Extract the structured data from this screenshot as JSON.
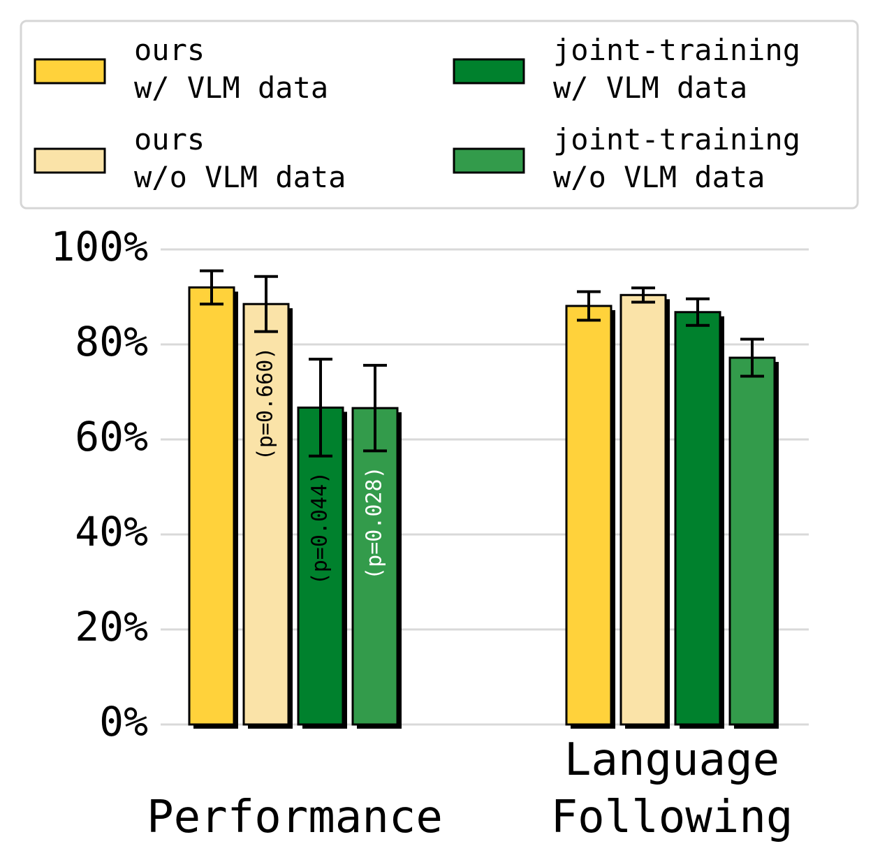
{
  "chart_data": {
    "type": "bar",
    "categories": [
      "Performance",
      "Language\nFollowing"
    ],
    "series": [
      {
        "name": "ours\nw/ VLM data",
        "color": "#ffd23b",
        "values": [
          92,
          88.1
        ],
        "errors": [
          3.5,
          3
        ],
        "notes": [
          null,
          null
        ]
      },
      {
        "name": "ours\nw/o VLM data",
        "color": "#fae3a8",
        "values": [
          88.5,
          90.4
        ],
        "errors": [
          5.8,
          1.5
        ],
        "notes": [
          "(p=0.660)",
          null
        ],
        "note_color": "#000000"
      },
      {
        "name": "joint-training\nw/ VLM data",
        "color": "#00812d",
        "values": [
          66.7,
          86.8
        ],
        "errors": [
          10.2,
          2.8
        ],
        "notes": [
          "(p=0.044)",
          null
        ],
        "note_color": "#000000"
      },
      {
        "name": "joint-training\nw/o VLM data",
        "color": "#339b4b",
        "values": [
          66.6,
          77.2
        ],
        "errors": [
          9,
          3.9
        ],
        "notes": [
          "(p=0.028)",
          null
        ],
        "note_color": "#ffffff"
      }
    ],
    "ylim": [
      0,
      100
    ],
    "yticks": [
      {
        "value": 0,
        "label": "0%"
      },
      {
        "value": 20,
        "label": "20%"
      },
      {
        "value": 40,
        "label": "40%"
      },
      {
        "value": 60,
        "label": "60%"
      },
      {
        "value": 80,
        "label": "80%"
      },
      {
        "value": 100,
        "label": "100%"
      }
    ],
    "grid": true,
    "legend": "top"
  }
}
